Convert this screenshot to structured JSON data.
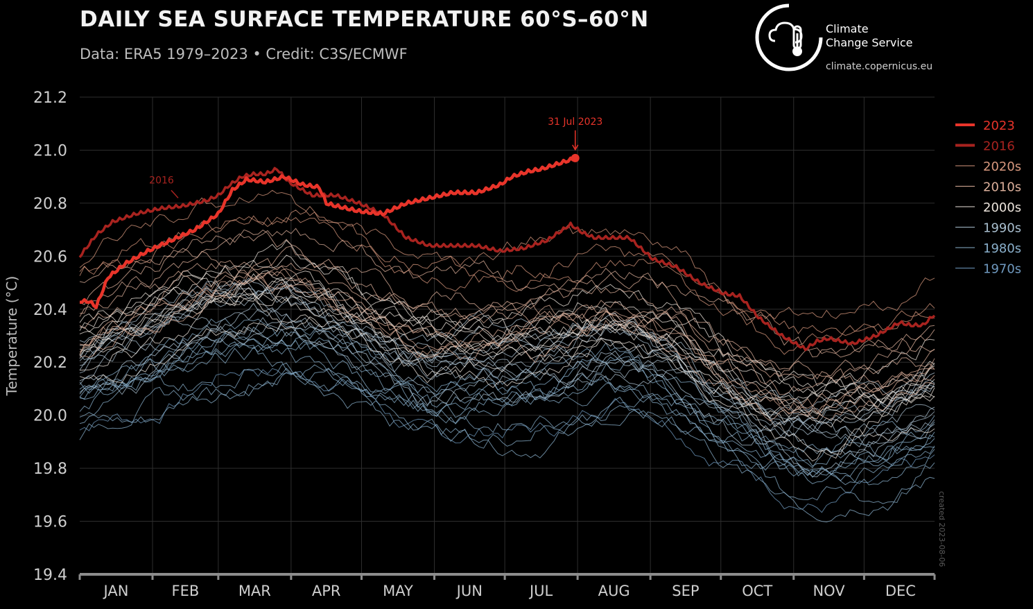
{
  "header": {
    "title": "DAILY SEA SURFACE TEMPERATURE 60°S–60°N",
    "subtitle": "Data: ERA5 1979–2023 • Credit: C3S/ECMWF"
  },
  "logo": {
    "name_line1": "Climate",
    "name_line2": "Change Service",
    "url": "climate.copernicus.eu",
    "icon": "thermometer-cloud-icon"
  },
  "credit": "created  2023-08-06",
  "colors": {
    "background": "#000000",
    "grid": "#2e2e2e",
    "y2023": "#e8342a",
    "y2016": "#a8231f",
    "d2020s": "#d8987e",
    "d2010s": "#ddb09b",
    "d2000s": "#ece4dc",
    "d1990s": "#a9bfcf",
    "d1980s": "#8ab0cc",
    "d1970s": "#6f99bf"
  },
  "chart_data": {
    "type": "line",
    "title": "DAILY SEA SURFACE TEMPERATURE 60°S–60°N",
    "xlabel": "",
    "ylabel": "Temperature (°C)",
    "ylim": [
      19.4,
      21.2
    ],
    "yticks": [
      "19.4",
      "19.6",
      "19.8",
      "20.0",
      "20.2",
      "20.4",
      "20.6",
      "20.8",
      "21.0",
      "21.2"
    ],
    "month_labels": [
      "JAN",
      "FEB",
      "MAR",
      "APR",
      "MAY",
      "JUN",
      "JUL",
      "AUG",
      "SEP",
      "OCT",
      "NOV",
      "DEC"
    ],
    "x_unit": "day of year",
    "xlim": [
      1,
      365
    ],
    "grid": true,
    "legend_position": "right",
    "legend": [
      {
        "label": "2023",
        "color": "#e8342a",
        "width": 4
      },
      {
        "label": "2016",
        "color": "#a8231f",
        "width": 4
      },
      {
        "label": "2020s",
        "color": "#d8987e",
        "width": 1
      },
      {
        "label": "2010s",
        "color": "#ddb09b",
        "width": 1
      },
      {
        "label": "2000s",
        "color": "#ece4dc",
        "width": 1
      },
      {
        "label": "1990s",
        "color": "#a9bfcf",
        "width": 1
      },
      {
        "label": "1980s",
        "color": "#8ab0cc",
        "width": 1
      },
      {
        "label": "1970s",
        "color": "#6f99bf",
        "width": 1
      }
    ],
    "highlight_series": [
      {
        "name": "2023",
        "color": "#e8342a",
        "x": [
          1,
          5,
          8,
          13,
          20,
          30,
          40,
          50,
          60,
          66,
          72,
          80,
          88,
          96,
          103,
          106,
          110,
          120,
          130,
          140,
          150,
          160,
          170,
          180,
          185,
          192,
          198,
          205,
          212
        ],
        "y": [
          20.43,
          20.43,
          20.41,
          20.52,
          20.57,
          20.62,
          20.66,
          20.7,
          20.76,
          20.85,
          20.89,
          20.88,
          20.9,
          20.87,
          20.86,
          20.8,
          20.79,
          20.77,
          20.76,
          20.8,
          20.82,
          20.84,
          20.84,
          20.87,
          20.9,
          20.92,
          20.93,
          20.95,
          20.97
        ]
      },
      {
        "name": "2016",
        "color": "#a8231f",
        "x": [
          1,
          8,
          15,
          25,
          35,
          45,
          55,
          60,
          65,
          70,
          75,
          80,
          85,
          90,
          100,
          110,
          120,
          130,
          140,
          150,
          160,
          170,
          180,
          190,
          200,
          205,
          210,
          215,
          220,
          230,
          235,
          245,
          255,
          265,
          275,
          282,
          290,
          300,
          310,
          315,
          320,
          330,
          340,
          350,
          355,
          360,
          365
        ],
        "y": [
          20.6,
          20.68,
          20.73,
          20.76,
          20.78,
          20.79,
          20.81,
          20.83,
          20.87,
          20.9,
          20.91,
          20.91,
          20.93,
          20.88,
          20.83,
          20.83,
          20.8,
          20.76,
          20.67,
          20.64,
          20.64,
          20.64,
          20.62,
          20.63,
          20.66,
          20.69,
          20.72,
          20.69,
          20.67,
          20.67,
          20.67,
          20.59,
          20.56,
          20.5,
          20.46,
          20.45,
          20.37,
          20.3,
          20.25,
          20.28,
          20.29,
          20.27,
          20.3,
          20.35,
          20.34,
          20.34,
          20.38
        ]
      }
    ],
    "decade_envelopes": [
      {
        "name": "2020s",
        "color": "#d8987e",
        "count": 3,
        "base_shift": 0.44,
        "spread": 0.08
      },
      {
        "name": "2010s",
        "color": "#ddb09b",
        "count": 9,
        "base_shift": 0.28,
        "spread": 0.13
      },
      {
        "name": "2000s",
        "color": "#ece4dc",
        "count": 10,
        "base_shift": 0.17,
        "spread": 0.12
      },
      {
        "name": "1990s",
        "color": "#a9bfcf",
        "count": 10,
        "base_shift": 0.05,
        "spread": 0.13
      },
      {
        "name": "1980s",
        "color": "#8ab0cc",
        "count": 10,
        "base_shift": -0.05,
        "spread": 0.13
      },
      {
        "name": "1970s",
        "color": "#6f99bf",
        "count": 1,
        "base_shift": -0.14,
        "spread": 0.02
      }
    ],
    "climatology_x": [
      1,
      15,
      30,
      45,
      60,
      75,
      90,
      105,
      120,
      135,
      150,
      165,
      180,
      195,
      210,
      225,
      240,
      255,
      270,
      285,
      300,
      315,
      330,
      345,
      365
    ],
    "climatology_y": [
      20.08,
      20.14,
      20.18,
      20.24,
      20.28,
      20.31,
      20.3,
      20.26,
      20.2,
      20.13,
      20.09,
      20.08,
      20.09,
      20.11,
      20.13,
      20.17,
      20.15,
      20.1,
      20.0,
      19.92,
      19.86,
      19.84,
      19.86,
      19.88,
      19.96
    ],
    "annotations": [
      {
        "text": "2016",
        "x": 50,
        "y": 20.77,
        "color": "#a8231f"
      },
      {
        "text": "31 Jul 2023",
        "x": 212,
        "y": 20.97,
        "color": "#e8342a"
      }
    ]
  }
}
